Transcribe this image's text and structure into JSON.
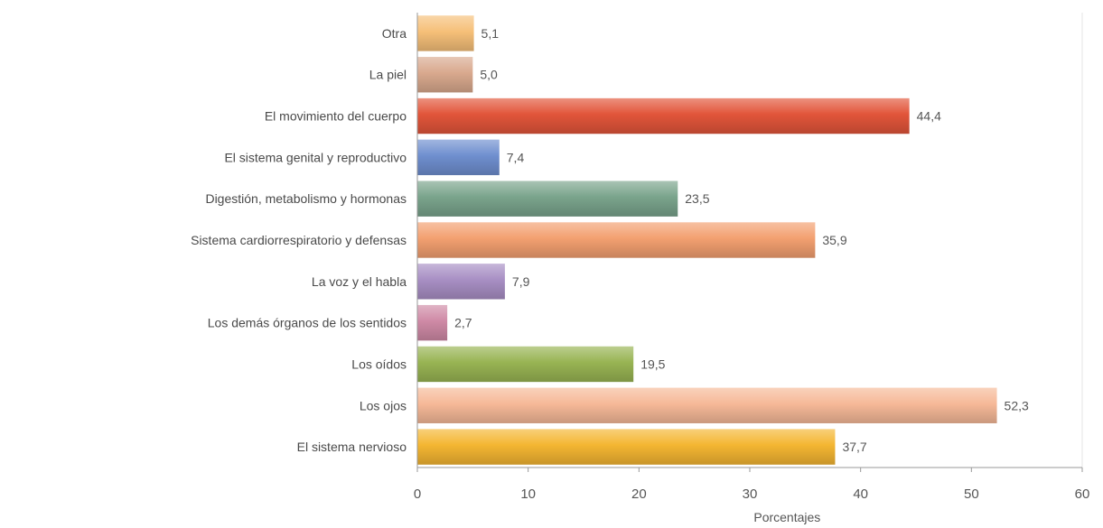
{
  "chart_data": {
    "type": "bar",
    "orientation": "horizontal",
    "categories": [
      "Otra",
      "La piel",
      "El movimiento del cuerpo",
      "El sistema genital y reproductivo",
      "Digestión, metabolismo y hormonas",
      "Sistema cardiorrespiratorio y defensas",
      "La voz y el habla",
      "Los demás órganos de los sentidos",
      "Los oídos",
      "Los ojos",
      "El sistema nervioso"
    ],
    "value_labels": [
      "5,1",
      "5,0",
      "44,4",
      "7,4",
      "23,5",
      "35,9",
      "7,9",
      "2,7",
      "19,5",
      "52,3",
      "37,7"
    ],
    "values": [
      5.1,
      5.0,
      44.4,
      7.4,
      23.5,
      35.9,
      7.9,
      2.7,
      19.5,
      52.3,
      37.7
    ],
    "colors": [
      "#f6c079",
      "#d9a98e",
      "#e2553a",
      "#6f8fcf",
      "#7aa48c",
      "#f3a070",
      "#a88fc4",
      "#cf8aa6",
      "#98b453",
      "#f6b998",
      "#f4b632"
    ],
    "xlabel": "Porcentajes",
    "ylabel": "",
    "xlim": [
      0,
      60
    ],
    "xticks": [
      0,
      10,
      20,
      30,
      40,
      50,
      60
    ],
    "grid": false,
    "legend": "none"
  }
}
